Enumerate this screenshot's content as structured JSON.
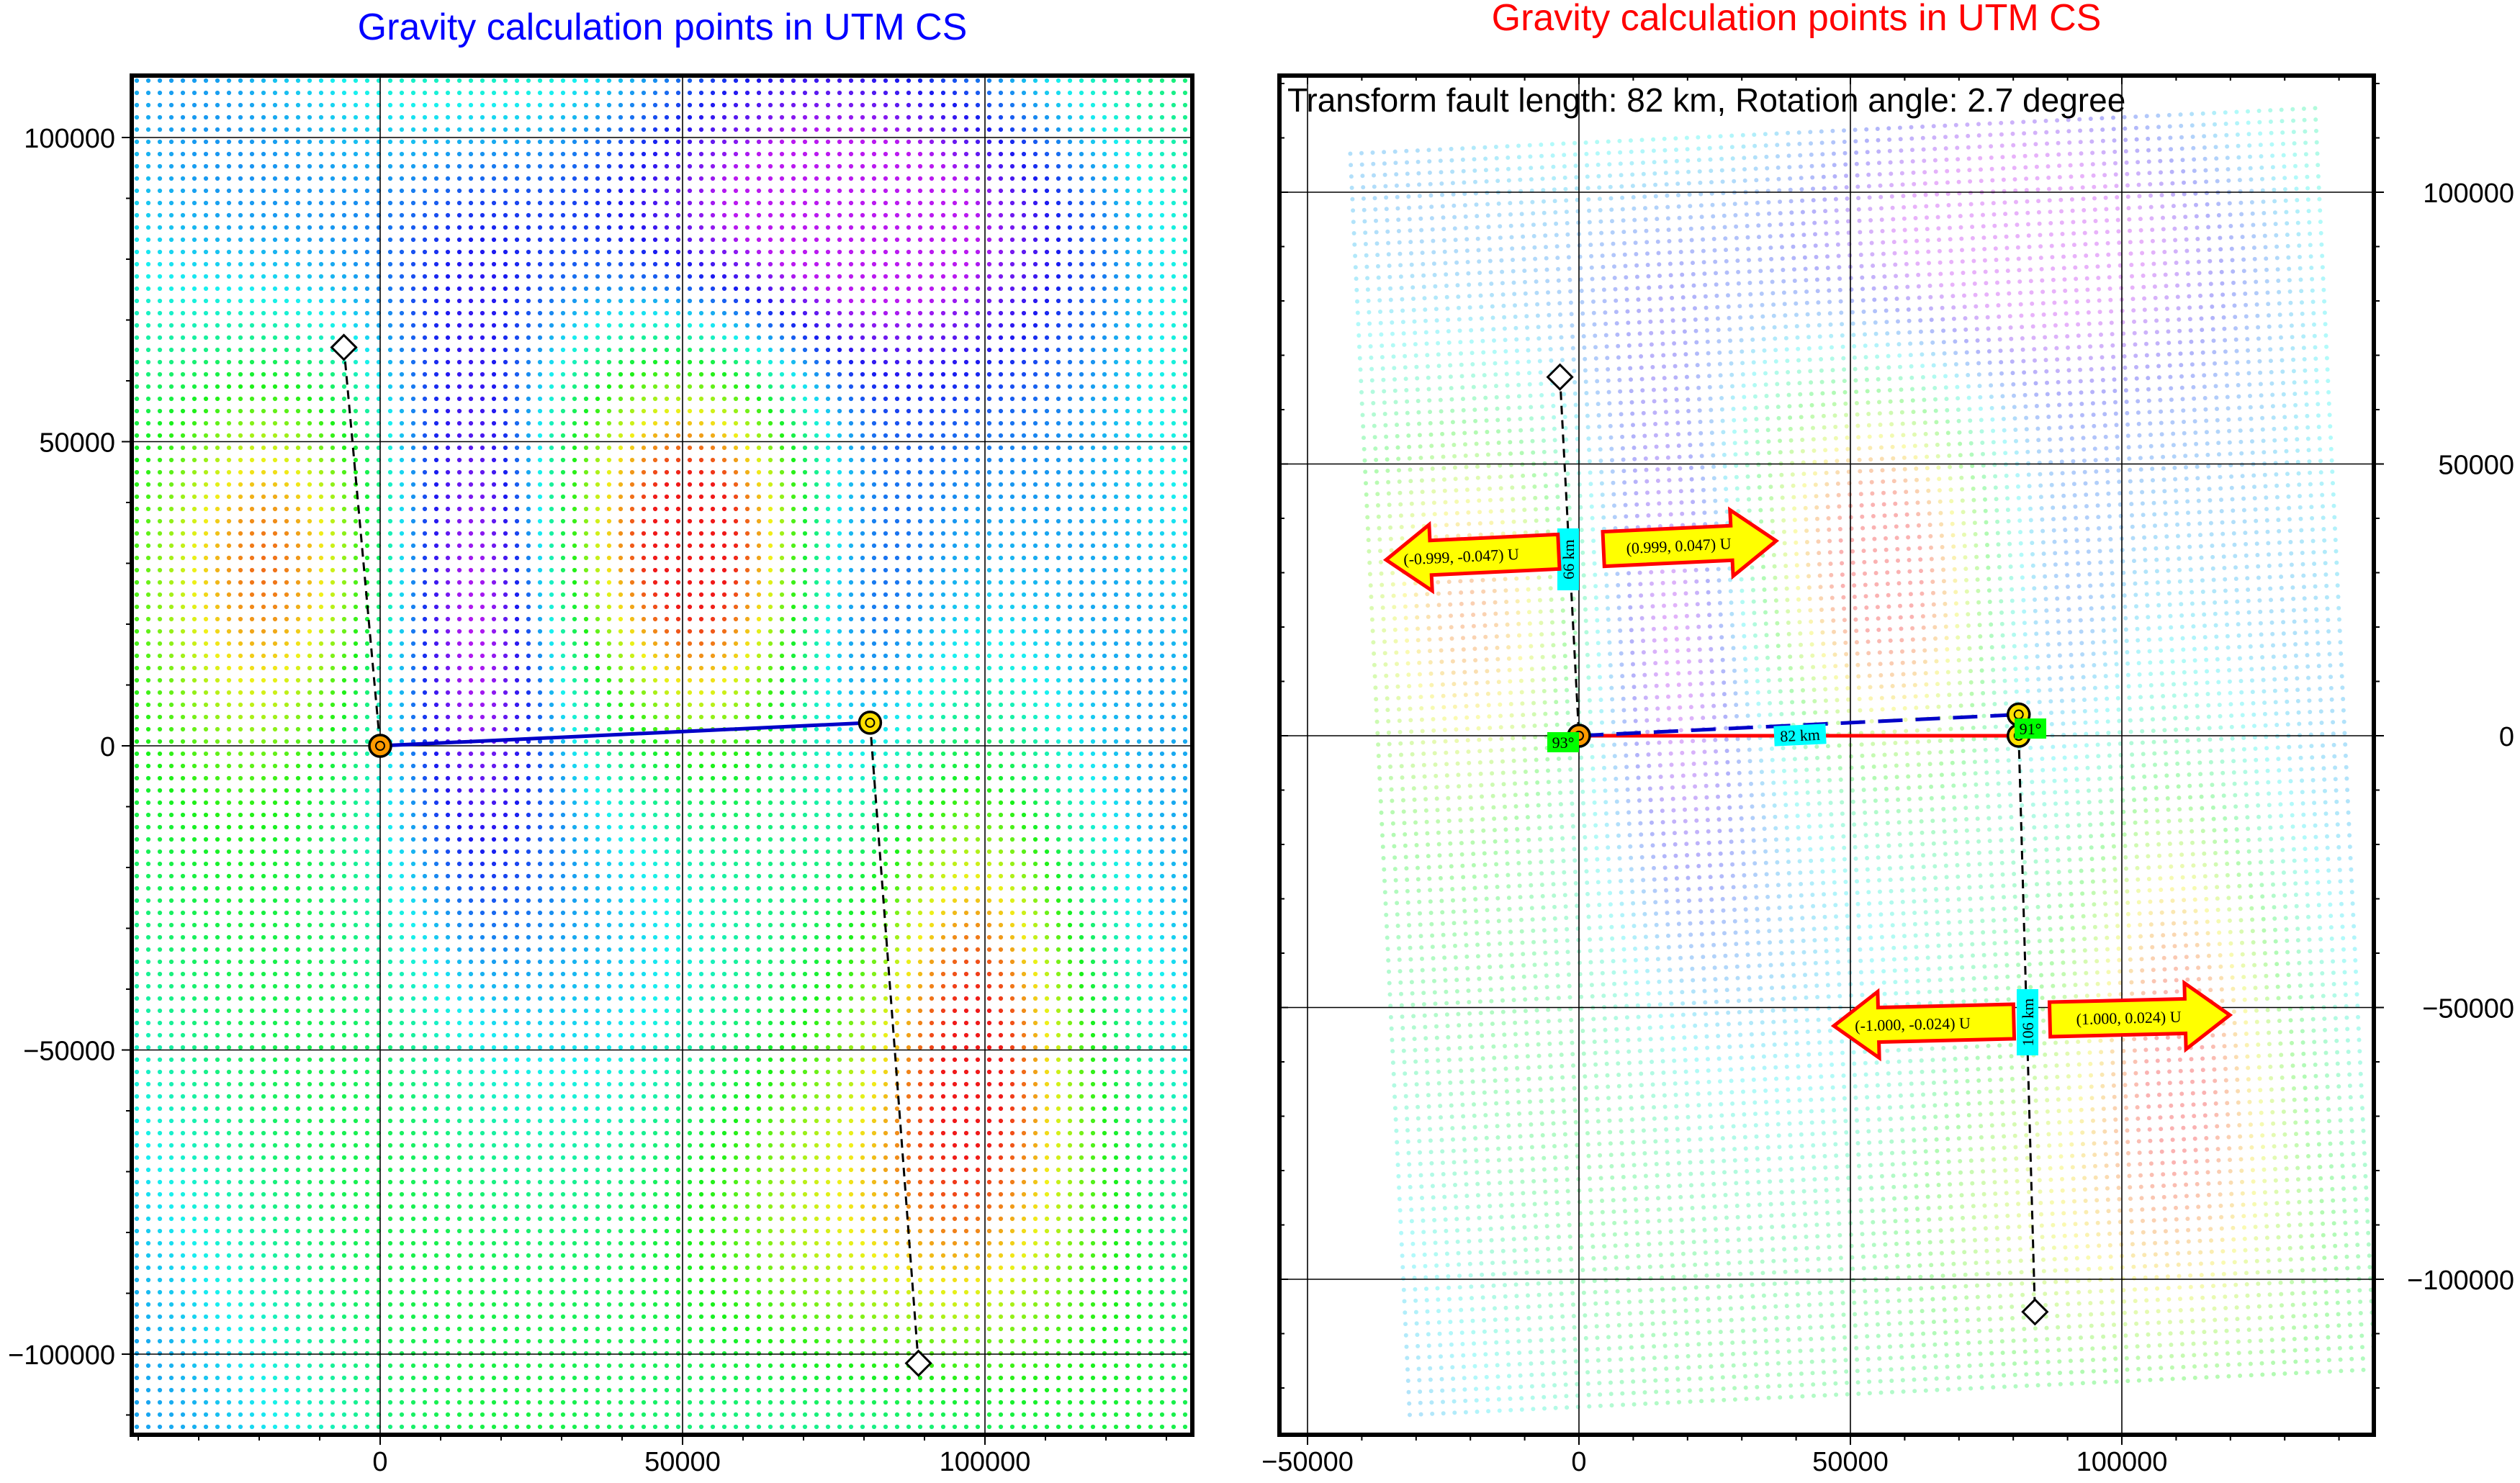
{
  "left_panel": {
    "title": "Gravity calculation points in UTM CS",
    "title_color": "#0000ff",
    "line_color": "#0000c8",
    "x_ticks": [
      0,
      50000,
      100000
    ],
    "y_ticks": [
      100000,
      50000,
      0,
      -50000,
      -100000
    ],
    "x_tick_labels": [
      "0",
      "50000",
      "100000"
    ],
    "y_tick_labels": [
      "100000",
      "50000",
      "0",
      "−50000",
      "−100000"
    ]
  },
  "right_panel": {
    "title": "Gravity calculation points in UTM CS",
    "title_color": "#ff0000",
    "line_color": "#ff0000",
    "dashed_color": "#0000c8",
    "annotation": "Transform fault length: 82 km,  Rotation angle: 2.7 degree",
    "x_ticks": [
      -50000,
      0,
      50000,
      100000
    ],
    "y_ticks": [
      100000,
      50000,
      0,
      -50000,
      -100000
    ],
    "x_tick_labels": [
      "−50000",
      "0",
      "50000",
      "100000"
    ],
    "y_tick_labels": [
      "100000",
      "50000",
      "0",
      "−50000",
      "−100000"
    ],
    "labels": {
      "top_dist": "66 km",
      "fault_length": "82 km",
      "bottom_dist": "106 km",
      "angle_left": "93°",
      "angle_right": "91°"
    },
    "arrows": {
      "top_left": "(-0.999, -0.047) U",
      "top_right": "(0.999, 0.047) U",
      "bottom_left": "(-1.000, -0.024) U",
      "bottom_right": "(1.000, 0.024) U"
    },
    "colors": {
      "label_cyan": "#00ffff",
      "label_green": "#00ff00",
      "arrow_fill": "#ffff00",
      "arrow_stroke": "#ff0000"
    }
  },
  "chart_data": [
    {
      "type": "scatter",
      "title": "Gravity calculation points in UTM CS",
      "xlim": [
        -42000,
        135000
      ],
      "ylim": [
        -114000,
        110000
      ],
      "grid": true,
      "points": {
        "ridge_start": [
          0,
          0
        ],
        "ridge_end": [
          81000,
          3800
        ],
        "ridge_marker_top": [
          -6000,
          65500
        ],
        "ridge_marker_bottom": [
          89000,
          -101500
        ]
      }
    },
    {
      "type": "scatter",
      "title": "Gravity calculation points in UTM CS",
      "xlim": [
        -55000,
        140000
      ],
      "ylim": [
        -128000,
        122000
      ],
      "grid": true,
      "points": {
        "fault_start": [
          0,
          0
        ],
        "fault_end": [
          81000,
          0
        ],
        "fault_end_rotated": [
          81000,
          3900
        ],
        "marker_top": [
          -3500,
          66000
        ],
        "marker_bottom": [
          84000,
          -106000
        ]
      }
    }
  ]
}
